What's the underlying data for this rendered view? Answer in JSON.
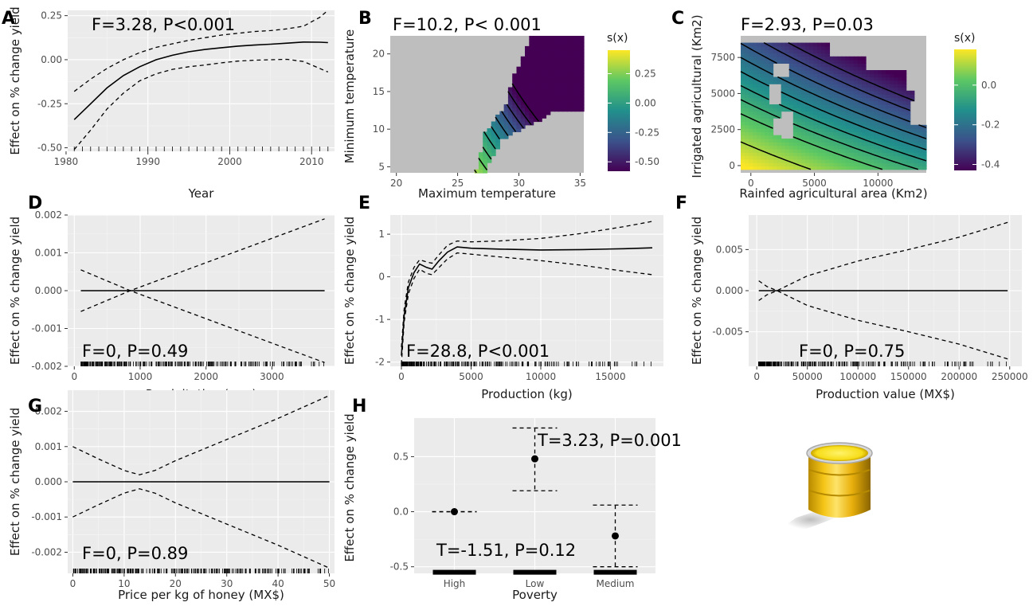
{
  "colors": {
    "panel_background": "#ebebeb",
    "gridline": "#ffffff",
    "na_fill": "#bebebe",
    "viridis": [
      "#440154",
      "#3b528b",
      "#21908c",
      "#5dc863",
      "#fde725"
    ]
  },
  "chart_data": [
    {
      "id": "A",
      "type": "line",
      "panel_label": "A",
      "annotation": "F=3.28, P<0.001",
      "xlabel": "Year",
      "ylabel": "Effect on % change yield",
      "xlim": [
        1980.2,
        2012.8
      ],
      "ylim": [
        -0.52,
        0.28
      ],
      "xticks": [
        1980,
        1990,
        2000,
        2010
      ],
      "xtick_labels": [
        "1980",
        "1990",
        "2000",
        "2010"
      ],
      "yticks": [
        -0.5,
        -0.25,
        0,
        0.25
      ],
      "ytick_labels": [
        "-0.50",
        "-0.25",
        "0.00",
        "0.25"
      ],
      "x": [
        1981,
        1983,
        1985,
        1987,
        1989,
        1991,
        1993,
        1995,
        1997,
        1999,
        2001,
        2003,
        2005,
        2007,
        2009,
        2011,
        2012
      ],
      "series": [
        {
          "role": "fit",
          "values": [
            -0.34,
            -0.25,
            -0.16,
            -0.09,
            -0.04,
            0.0,
            0.025,
            0.045,
            0.058,
            0.068,
            0.077,
            0.083,
            0.088,
            0.094,
            0.1,
            0.099,
            0.097
          ]
        },
        {
          "role": "upper",
          "values": [
            -0.18,
            -0.11,
            -0.05,
            0.0,
            0.04,
            0.07,
            0.09,
            0.11,
            0.125,
            0.14,
            0.15,
            0.16,
            0.165,
            0.175,
            0.19,
            0.24,
            0.28
          ]
        },
        {
          "role": "lower",
          "values": [
            -0.51,
            -0.4,
            -0.28,
            -0.19,
            -0.12,
            -0.08,
            -0.055,
            -0.04,
            -0.03,
            -0.018,
            -0.008,
            -0.003,
            0.0,
            0.002,
            -0.01,
            -0.05,
            -0.07
          ]
        }
      ],
      "rug": [
        1981,
        1982,
        1983,
        1984,
        1985,
        1986,
        1987,
        1988,
        1989,
        1990,
        1991,
        1992,
        1993,
        1994,
        1995,
        1996,
        1997,
        1998,
        1999,
        2000,
        2001,
        2002,
        2003,
        2004,
        2005,
        2006,
        2007,
        2008,
        2009,
        2010,
        2011,
        2012
      ]
    },
    {
      "id": "B",
      "type": "heatmap",
      "panel_label": "B",
      "annotation": "F=10.2, P< 0.001",
      "xlabel": "Maximum temperature",
      "ylabel": "Minimum temperature",
      "xlim": [
        19.5,
        35.3
      ],
      "ylim": [
        4.2,
        22.4
      ],
      "xticks": [
        20,
        25,
        30,
        35
      ],
      "xtick_labels": [
        "20",
        "25",
        "30",
        "35"
      ],
      "yticks": [
        5,
        10,
        15,
        20
      ],
      "ytick_labels": [
        "5",
        "10",
        "15",
        "20"
      ],
      "legend": {
        "title": "s(x)",
        "range": [
          -0.58,
          0.45
        ],
        "ticks": [
          0.25,
          0,
          -0.25,
          -0.5
        ],
        "tick_labels": [
          "0.25",
          "0.00",
          "-0.25",
          "-0.50"
        ]
      },
      "region": [
        [
          19.5,
          4.2
        ],
        [
          26.5,
          4.2
        ],
        [
          27.2,
          9.5
        ],
        [
          29.0,
          13.5
        ],
        [
          29.5,
          17.0
        ],
        [
          30.3,
          19.5
        ],
        [
          31.0,
          22.4
        ],
        [
          35.3,
          22.4
        ],
        [
          35.3,
          12.5
        ],
        [
          33.0,
          12.5
        ],
        [
          31.5,
          11.0
        ],
        [
          29.5,
          9.5
        ],
        [
          28.5,
          8.5
        ],
        [
          28.3,
          7.5
        ],
        [
          27.5,
          5.5
        ],
        [
          27.2,
          4.2
        ]
      ],
      "surface": {
        "a": 0.06,
        "bx": 0.11,
        "cy": 0.055,
        "x0": 24,
        "y0": 8
      },
      "contour_levels": [
        0.3,
        0.2,
        0.1,
        0.0,
        -0.1,
        -0.2,
        -0.3,
        -0.4,
        -0.5,
        -0.6
      ]
    },
    {
      "id": "C",
      "type": "heatmap",
      "panel_label": "C",
      "annotation": "F=2.93, P=0.03",
      "xlabel": "Rainfed agricultural area (Km2)",
      "ylabel": "Irrigated agricultural (Km2)",
      "xlim": [
        -800,
        13800
      ],
      "ylim": [
        -500,
        9000
      ],
      "xticks": [
        0,
        5000,
        10000
      ],
      "xtick_labels": [
        "0",
        "5000",
        "10000"
      ],
      "yticks": [
        0,
        2500,
        5000,
        7500
      ],
      "ytick_labels": [
        "0",
        "2500",
        "5000",
        "7500"
      ],
      "legend": {
        "title": "s(x)",
        "range": [
          -0.43,
          0.18
        ],
        "ticks": [
          0,
          -0.2,
          -0.4
        ],
        "tick_labels": [
          "0.0",
          "-0.2",
          "-0.4"
        ]
      },
      "surface": {
        "a": 0.17,
        "bx": 1.8e-05,
        "cy": 5.2e-05,
        "d": 9.5e-10
      },
      "contour_levels": [
        0.1,
        0.0,
        -0.05,
        -0.1,
        -0.15,
        -0.2,
        -0.25,
        -0.3,
        -0.35
      ]
    },
    {
      "id": "D",
      "type": "line",
      "panel_label": "D",
      "annotation": "F=0, P=0.49",
      "xlabel": "Precipitation (mm)",
      "ylabel": "Effect on % change yield",
      "xlim": [
        -100,
        3950
      ],
      "ylim": [
        -0.002,
        0.002
      ],
      "xticks": [
        0,
        1000,
        2000,
        3000
      ],
      "xtick_labels": [
        "0",
        "1000",
        "2000",
        "3000"
      ],
      "yticks": [
        -0.002,
        -0.001,
        0,
        0.001,
        0.002
      ],
      "ytick_labels": [
        "-0.002",
        "-0.001",
        "0.000",
        "0.001",
        "0.002"
      ],
      "x": [
        100,
        850,
        3800
      ],
      "series": [
        {
          "role": "fit",
          "values": [
            0,
            0,
            0
          ]
        },
        {
          "role": "upper",
          "values": [
            -0.00055,
            0,
            0.0019
          ]
        },
        {
          "role": "lower",
          "values": [
            0.00055,
            0,
            -0.0019
          ]
        }
      ],
      "rug_range": [
        100,
        3800
      ]
    },
    {
      "id": "E",
      "type": "line",
      "panel_label": "E",
      "annotation": "F=28.8, P<0.001",
      "xlabel": "Production (kg)",
      "ylabel": "Effect on % change yield",
      "xlim": [
        -800,
        18800
      ],
      "ylim": [
        -2.1,
        1.45
      ],
      "xticks": [
        0,
        5000,
        10000,
        15000
      ],
      "xtick_labels": [
        "0",
        "5000",
        "10000",
        "15000"
      ],
      "yticks": [
        -2,
        -1,
        0,
        1
      ],
      "ytick_labels": [
        "-2",
        "-1",
        "0",
        "1"
      ],
      "x": [
        0,
        200,
        500,
        900,
        1300,
        1800,
        2200,
        2700,
        3300,
        4000,
        5000,
        7000,
        10000,
        13000,
        16000,
        18000
      ],
      "series": [
        {
          "role": "fit",
          "values": [
            -1.85,
            -0.9,
            -0.25,
            0.1,
            0.3,
            0.22,
            0.18,
            0.38,
            0.58,
            0.7,
            0.67,
            0.65,
            0.63,
            0.64,
            0.66,
            0.68
          ]
        },
        {
          "role": "upper",
          "values": [
            -1.65,
            -0.75,
            -0.12,
            0.22,
            0.4,
            0.35,
            0.32,
            0.52,
            0.74,
            0.84,
            0.82,
            0.84,
            0.9,
            1.02,
            1.18,
            1.3
          ]
        },
        {
          "role": "lower",
          "values": [
            -2.05,
            -1.05,
            -0.4,
            -0.04,
            0.18,
            0.08,
            0.05,
            0.22,
            0.42,
            0.56,
            0.53,
            0.47,
            0.38,
            0.27,
            0.13,
            0.05
          ]
        }
      ],
      "rug_range": [
        0,
        18000
      ]
    },
    {
      "id": "F",
      "type": "line",
      "panel_label": "F",
      "annotation": "F=0, P=0.75",
      "xlabel": "Production value (MX$)",
      "ylabel": "Effect on % change yield",
      "xlim": [
        -8000,
        262000
      ],
      "ylim": [
        -0.0092,
        0.0092
      ],
      "xticks": [
        0,
        50000,
        100000,
        150000,
        200000,
        250000
      ],
      "xtick_labels": [
        "0",
        "50000",
        "100000",
        "150000",
        "200000",
        "250000"
      ],
      "yticks": [
        -0.005,
        0,
        0.005
      ],
      "ytick_labels": [
        "-0.005",
        "0.000",
        "0.005"
      ],
      "x": [
        2000,
        10000,
        20000,
        50000,
        100000,
        150000,
        200000,
        248000
      ],
      "series": [
        {
          "role": "fit",
          "values": [
            0,
            0,
            0,
            0,
            0,
            0,
            0,
            0
          ]
        },
        {
          "role": "upper",
          "values": [
            -0.0012,
            -0.0005,
            0.0,
            0.0018,
            0.0036,
            0.005,
            0.0065,
            0.0083
          ]
        },
        {
          "role": "lower",
          "values": [
            0.0012,
            0.0005,
            0.0,
            -0.0018,
            -0.0036,
            -0.005,
            -0.0065,
            -0.0083
          ]
        }
      ],
      "rug_range": [
        2000,
        248000
      ]
    },
    {
      "id": "G",
      "type": "line",
      "panel_label": "G",
      "annotation": "F=0, P=0.89",
      "xlabel": "Price per kg of honey (MX$)",
      "ylabel": "Effect on % change yield",
      "xlim": [
        -1,
        51
      ],
      "ylim": [
        -0.0026,
        0.0026
      ],
      "xticks": [
        0,
        10,
        20,
        30,
        40,
        50
      ],
      "xtick_labels": [
        "0",
        "10",
        "20",
        "30",
        "40",
        "50"
      ],
      "yticks": [
        -0.002,
        -0.001,
        0,
        0.001,
        0.002
      ],
      "ytick_labels": [
        "-0.002",
        "-0.001",
        "0.000",
        "0.001",
        "0.002"
      ],
      "x": [
        0,
        5,
        10,
        13,
        16,
        20,
        30,
        40,
        50
      ],
      "series": [
        {
          "role": "fit",
          "values": [
            0,
            0,
            0,
            0,
            0,
            0,
            0,
            0,
            0
          ]
        },
        {
          "role": "upper",
          "values": [
            0.001,
            0.00065,
            0.00032,
            0.0002,
            0.00032,
            0.0006,
            0.0012,
            0.0018,
            0.00245
          ]
        },
        {
          "role": "lower",
          "values": [
            -0.001,
            -0.00065,
            -0.00032,
            -0.0002,
            -0.00032,
            -0.0006,
            -0.0012,
            -0.0018,
            -0.00245
          ]
        }
      ],
      "rug_range": [
        0,
        50
      ]
    },
    {
      "id": "H",
      "type": "scatter",
      "panel_label": "H",
      "annotation": "T=3.23, P=0.001",
      "annotation2": "T=-1.51, P=0.12",
      "xlabel": "Poverty",
      "ylabel": "Effect on % change yield",
      "categories": [
        "High",
        "Low",
        "Medium"
      ],
      "ylim": [
        -0.56,
        0.85
      ],
      "yticks": [
        -0.5,
        0,
        0.5
      ],
      "ytick_labels": [
        "-0.5",
        "0.0",
        "0.5"
      ],
      "values": [
        0,
        0.48,
        -0.22
      ],
      "upper": [
        0,
        0.76,
        0.06
      ],
      "lower": [
        0,
        0.19,
        -0.5
      ]
    }
  ]
}
